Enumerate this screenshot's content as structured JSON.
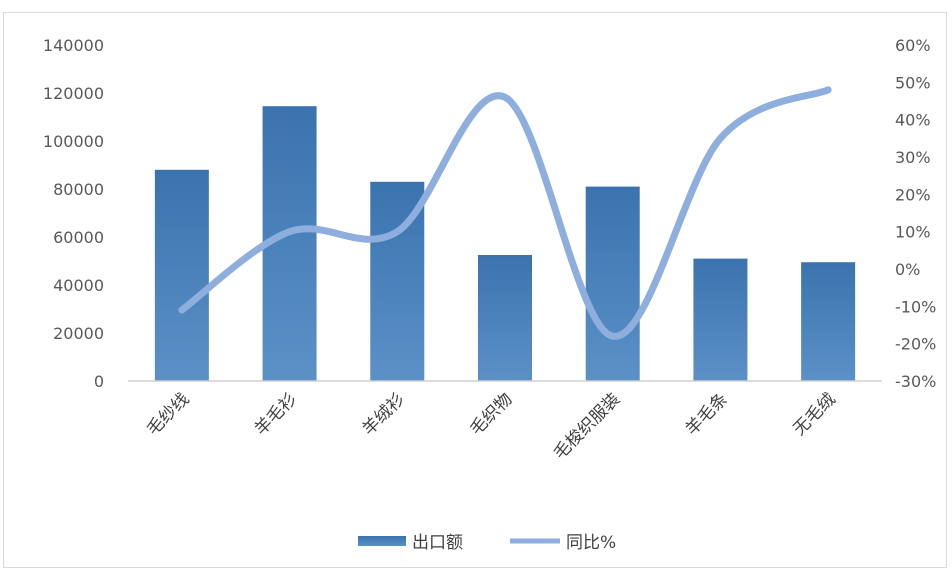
{
  "chart_data": {
    "type": "bar",
    "categories": [
      "毛纱线",
      "羊毛衫",
      "羊绒衫",
      "毛织物",
      "毛梭织服装",
      "羊毛条",
      "无毛绒"
    ],
    "series": [
      {
        "name": "出口额",
        "type": "bar",
        "axis": "left",
        "values": [
          88000,
          114500,
          83000,
          52500,
          81000,
          51000,
          49500
        ]
      },
      {
        "name": "同比%",
        "type": "line",
        "axis": "right",
        "smooth": true,
        "values": [
          -11,
          10,
          10,
          46,
          -18,
          35,
          48
        ]
      }
    ],
    "y_left": {
      "min": 0,
      "max": 140000,
      "step": 20000,
      "ticks": [
        "0",
        "20000",
        "40000",
        "60000",
        "80000",
        "100000",
        "120000",
        "140000"
      ]
    },
    "y_right": {
      "min": -30,
      "max": 60,
      "step": 10,
      "ticks": [
        "-30%",
        "-20%",
        "-10%",
        "0%",
        "10%",
        "20%",
        "30%",
        "40%",
        "50%",
        "60%"
      ]
    },
    "legend_position": "bottom",
    "grid": false,
    "colors": {
      "bar": "#3f78b3",
      "bar_light": "#5b91c7",
      "line": "#8eaedd",
      "axis": "#d0d0d0",
      "text": "#595959"
    }
  }
}
